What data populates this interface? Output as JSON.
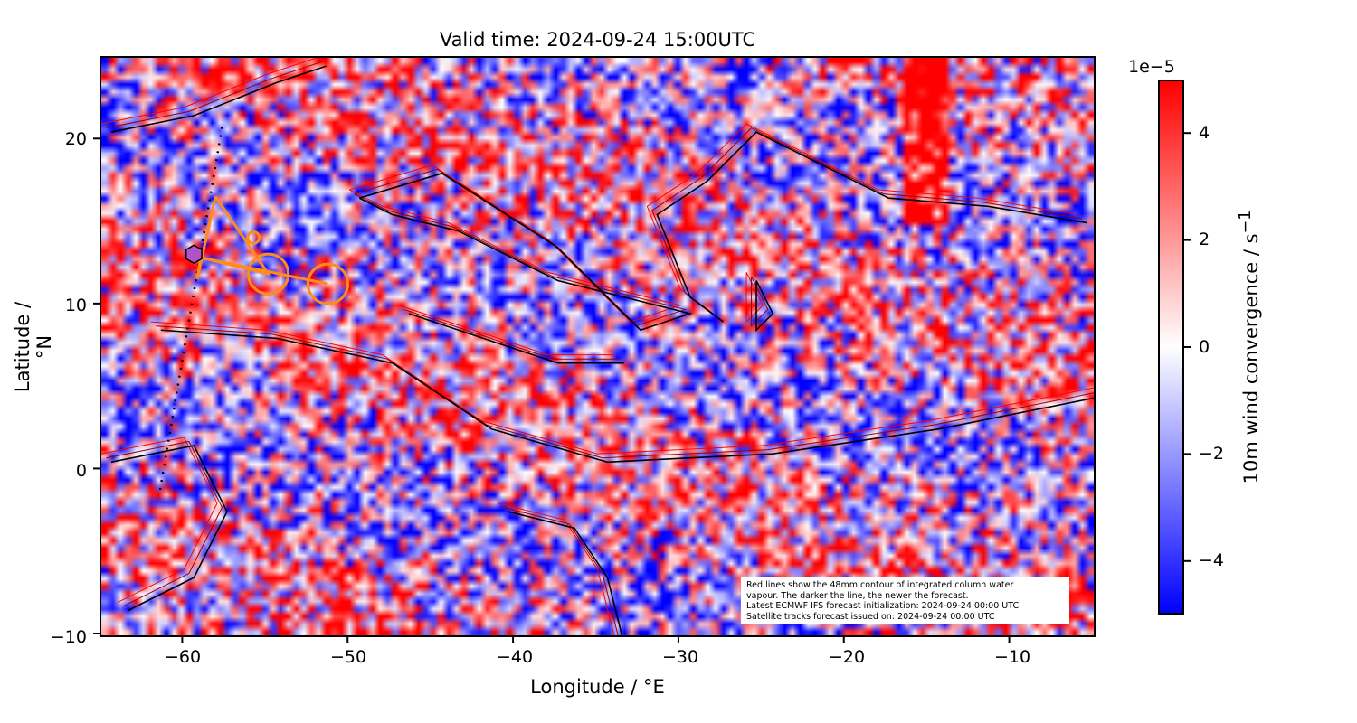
{
  "chart_data": {
    "type": "heatmap",
    "title": "Valid time: 2024-09-24 15:00UTC",
    "xlabel": "Longitude / °E",
    "ylabel": "Latitude / °N",
    "xlim": [
      -65,
      -5
    ],
    "ylim": [
      -10,
      25
    ],
    "xticks": [
      "−60",
      "−50",
      "−40",
      "−30",
      "−20",
      "−10"
    ],
    "xtick_values": [
      -60,
      -50,
      -40,
      -30,
      -20,
      -10
    ],
    "yticks": [
      "20",
      "10",
      "0",
      "−10"
    ],
    "ytick_values": [
      20,
      10,
      0,
      -10
    ],
    "colorbar": {
      "label": "10m wind convergence / s",
      "label_sup": "−1",
      "exponent": "1e−5",
      "range": [
        -5,
        5
      ],
      "ticks": [
        "4",
        "2",
        "0",
        "−2",
        "−4"
      ],
      "tick_values": [
        4,
        2,
        0,
        -2,
        -4
      ],
      "colormap": "bwr"
    },
    "colors": {
      "positive": "#ff0000",
      "zero": "#ffffff",
      "negative": "#0000ff",
      "track": "#ff8c1a",
      "hexagon": "#b152c8",
      "contour_new": "#000000",
      "contour_old": "#ff0000"
    },
    "satellite_track": {
      "triangle": [
        [
          -58.1,
          16.6
        ],
        [
          -59.2,
          11.6
        ],
        [
          -59.0,
          12.9
        ],
        [
          -54.9,
          11.9
        ],
        [
          -58.1,
          16.6
        ]
      ],
      "segment": [
        [
          -59.0,
          12.9
        ],
        [
          -51.3,
          11.3
        ]
      ],
      "circles": [
        {
          "lon": -54.9,
          "lat": 11.9,
          "r_deg": 1.2
        },
        {
          "lon": -55.8,
          "lat": 14.1,
          "r_deg": 0.35
        },
        {
          "lon": -51.3,
          "lat": 11.3,
          "r_deg": 1.2
        }
      ],
      "hexagon": [
        -59.4,
        13.1
      ],
      "dotted_path": [
        [
          -57.7,
          20.8
        ],
        [
          -59.3,
          11.4
        ],
        [
          -61.5,
          -1.5
        ]
      ]
    },
    "annotation": [
      "Red lines show the 48mm contour of integrated column water",
      "vapour. The darker the line, the newer the forecast.",
      "Latest ECMWF IFS forecast initialization: 2024-09-24 00:00 UTC",
      "Satellite tracks forecast issued on: 2024-09-24 00:00 UTC"
    ]
  }
}
